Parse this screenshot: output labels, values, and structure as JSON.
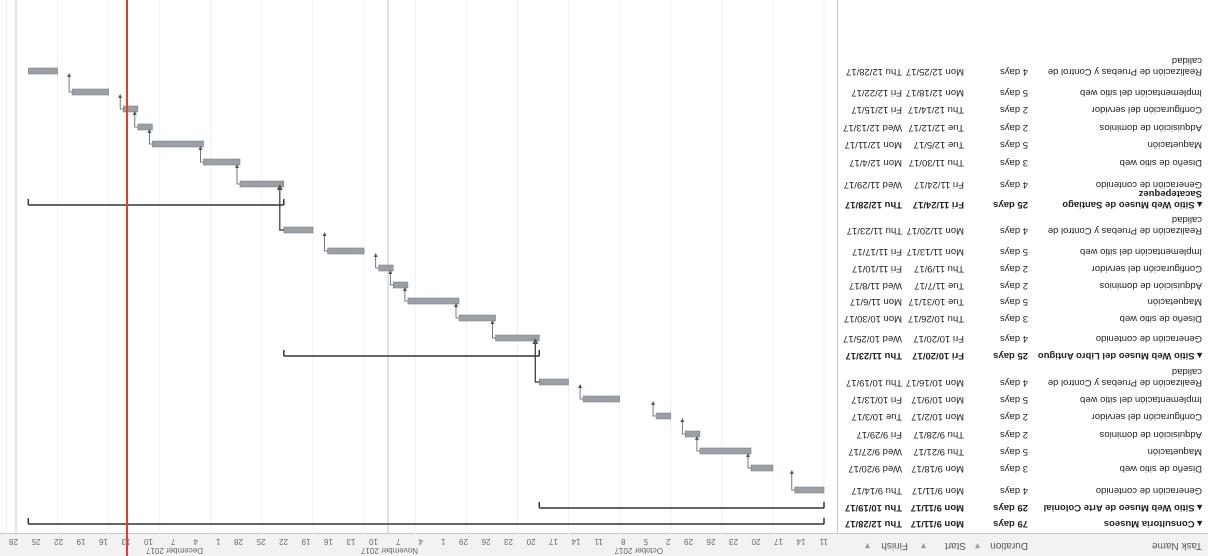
{
  "header": {
    "task_name": "Task Name",
    "duration": "Duration",
    "start": "Start",
    "finish": "Finish"
  },
  "rows": [
    {
      "name": "▴ Consultoria Museos",
      "duration": "79 days",
      "start": "Mon 9/11/17",
      "finish": "Thu 12/28/17",
      "summary": true
    },
    {
      "name": "▴ Sitio Web Museo de Arte Colonial",
      "duration": "29 days",
      "start": "Mon 9/11/17",
      "finish": "Thu 10/19/17",
      "summary": true
    },
    {
      "name": "Generación de contenido",
      "duration": "4 days",
      "start": "Mon 9/11/17",
      "finish": "Thu 9/14/17",
      "summary": false
    },
    {
      "name": "Diseño de sitio web",
      "duration": "3 days",
      "start": "Mon 9/18/17",
      "finish": "Wed 9/20/17",
      "summary": false
    },
    {
      "name": "Maquetación",
      "duration": "5 days",
      "start": "Thu 9/21/17",
      "finish": "Wed 9/27/17",
      "summary": false
    },
    {
      "name": "Adquisición de dominios",
      "duration": "2 days",
      "start": "Thu 9/28/17",
      "finish": "Fri 9/29/17",
      "summary": false
    },
    {
      "name": "Configuración del servidor",
      "duration": "2 days",
      "start": "Mon 10/2/17",
      "finish": "Tue 10/3/17",
      "summary": false
    },
    {
      "name": "Implementación del sitio web",
      "duration": "5 days",
      "start": "Mon 10/9/17",
      "finish": "Fri 10/13/17",
      "summary": false
    },
    {
      "name": "Realización de Pruebas y Control de calidad",
      "duration": "4 days",
      "start": "Mon 10/16/17",
      "finish": "Thu 10/19/17",
      "summary": false
    },
    {
      "name": "▴ Sitio Web Museo del Libro Antiguo",
      "duration": "25 days",
      "start": "Fri 10/20/17",
      "finish": "Thu 11/23/17",
      "summary": true
    },
    {
      "name": "Generación de contenido",
      "duration": "4 days",
      "start": "Fri 10/20/17",
      "finish": "Wed 10/25/17",
      "summary": false
    },
    {
      "name": "Diseño de sitio web",
      "duration": "3 days",
      "start": "Thu 10/26/17",
      "finish": "Mon 10/30/17",
      "summary": false
    },
    {
      "name": "Maquetación",
      "duration": "5 days",
      "start": "Tue 10/31/17",
      "finish": "Mon 11/6/17",
      "summary": false
    },
    {
      "name": "Adquisición de dominios",
      "duration": "2 days",
      "start": "Tue 11/7/17",
      "finish": "Wed 11/8/17",
      "summary": false
    },
    {
      "name": "Configuración del servidor",
      "duration": "2 days",
      "start": "Thu 11/9/17",
      "finish": "Fri 11/10/17",
      "summary": false
    },
    {
      "name": "Implementación del sitio web",
      "duration": "5 days",
      "start": "Mon 11/13/17",
      "finish": "Fri 11/17/17",
      "summary": false
    },
    {
      "name": "Realización de Pruebas y Control de calidad",
      "duration": "4 days",
      "start": "Mon 11/20/17",
      "finish": "Thu 11/23/17",
      "summary": false
    },
    {
      "name": "▴ Sitio Web Museo de Santiago Sacatepequez",
      "duration": "25 days",
      "start": "Fri 11/24/17",
      "finish": "Thu 12/28/17",
      "summary": true
    },
    {
      "name": "Generación de contenido",
      "duration": "4 days",
      "start": "Fri 11/24/17",
      "finish": "Wed 11/29/17",
      "summary": false
    },
    {
      "name": "Diseño de sitio web",
      "duration": "3 days",
      "start": "Thu 11/30/17",
      "finish": "Mon 12/4/17",
      "summary": false
    },
    {
      "name": "Maquetación",
      "duration": "5 days",
      "start": "Tue 12/5/17",
      "finish": "Mon 12/11/17",
      "summary": false
    },
    {
      "name": "Adquisición de dominios",
      "duration": "2 days",
      "start": "Tue 12/12/17",
      "finish": "Wed 12/13/17",
      "summary": false
    },
    {
      "name": "Configuración del servidor",
      "duration": "2 days",
      "start": "Thu 12/14/17",
      "finish": "Fri 12/15/17",
      "summary": false
    },
    {
      "name": "Implementación del sitio web",
      "duration": "5 days",
      "start": "Mon 12/18/17",
      "finish": "Fri 12/22/17",
      "summary": false
    },
    {
      "name": "Realización de Pruebas y Control de calidad",
      "duration": "4 days",
      "start": "Mon 12/25/17",
      "finish": "Thu 12/28/17",
      "summary": false
    }
  ],
  "timeline": {
    "months": [
      "October 2017",
      "November 2017",
      "December 2017"
    ],
    "days": [
      "11",
      "14",
      "17",
      "20",
      "23",
      "26",
      "29",
      "2",
      "5",
      "8",
      "11",
      "14",
      "17",
      "20",
      "23",
      "26",
      "29",
      "1",
      "4",
      "7",
      "10",
      "13",
      "16",
      "19",
      "22",
      "25",
      "28",
      "1",
      "4",
      "7",
      "10",
      "13",
      "16",
      "19",
      "22",
      "25",
      "28"
    ],
    "bar_color": "#9aa0a6",
    "today_line_color": "#e53b2f",
    "gridline_color": "#b9c7e8"
  }
}
